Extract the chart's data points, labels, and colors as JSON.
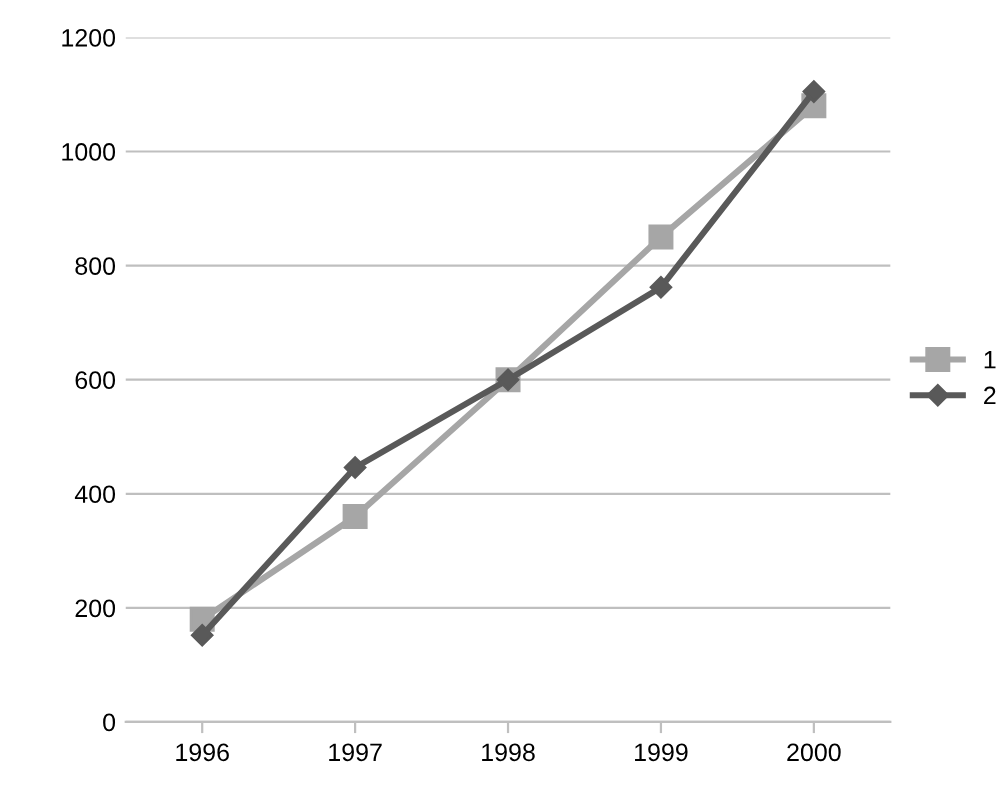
{
  "chart_data": {
    "type": "line",
    "categories": [
      "1996",
      "1997",
      "1998",
      "1999",
      "2000"
    ],
    "series": [
      {
        "name": "1",
        "color": "#a6a6a6",
        "marker": "square",
        "values": [
          180,
          360,
          600,
          850,
          1080
        ]
      },
      {
        "name": "2",
        "color": "#595959",
        "marker": "diamond",
        "values": [
          152,
          446,
          600,
          762,
          1105
        ]
      }
    ],
    "ylim": [
      0,
      1200
    ],
    "yticks": [
      0,
      200,
      400,
      600,
      800,
      1000,
      1200
    ],
    "grid": "y",
    "legend": "right",
    "line_style": "solid"
  }
}
